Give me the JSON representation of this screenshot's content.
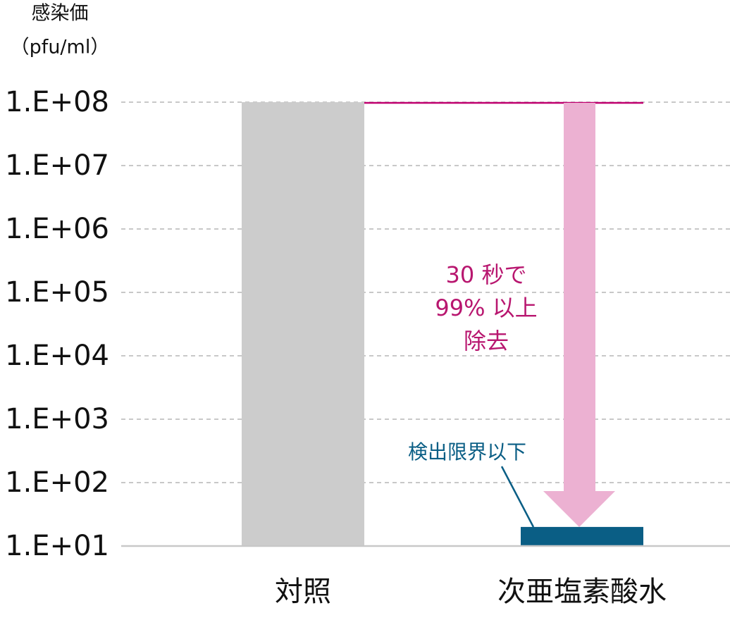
{
  "chart_data": {
    "type": "bar",
    "y_axis_label": [
      "感染価",
      "（pfu/ml）"
    ],
    "categories": [
      "対照",
      "次亜塩素酸水"
    ],
    "values": [
      100000000,
      20
    ],
    "colors": [
      "#cccccc",
      "#0a5e85"
    ],
    "ylim": [
      10,
      100000000
    ],
    "yticks": [
      {
        "value": 10,
        "label": "1.E+01"
      },
      {
        "value": 100,
        "label": "1.E+02"
      },
      {
        "value": 1000,
        "label": "1.E+03"
      },
      {
        "value": 10000,
        "label": "1.E+04"
      },
      {
        "value": 100000,
        "label": "1.E+05"
      },
      {
        "value": 1000000,
        "label": "1.E+06"
      },
      {
        "value": 10000000,
        "label": "1.E+07"
      },
      {
        "value": 100000000,
        "label": "1.E+08"
      }
    ],
    "log_scale": true,
    "grid": true,
    "annotations": {
      "reduction": [
        "30 秒で",
        "99% 以上",
        "除去"
      ],
      "detection_limit": "検出限界以下"
    }
  }
}
